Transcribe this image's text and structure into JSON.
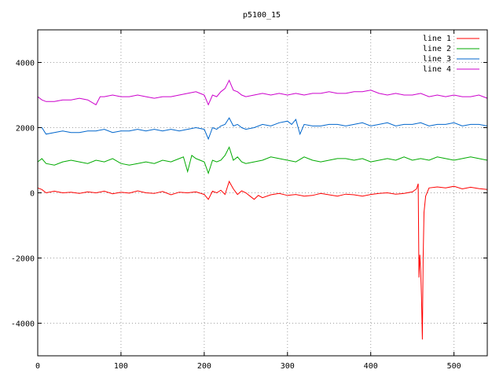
{
  "chart_data": {
    "type": "line",
    "title": "p5100_15",
    "xlabel": "",
    "ylabel": "",
    "xlim": [
      0,
      540
    ],
    "ylim": [
      -5000,
      5000
    ],
    "xticks": [
      0,
      100,
      200,
      300,
      400,
      500
    ],
    "yticks": [
      -4000,
      -2000,
      0,
      2000,
      4000
    ],
    "grid": true,
    "legend_position": "top-right",
    "series": [
      {
        "name": "line 1",
        "color": "#ff0000",
        "points": [
          [
            0,
            150
          ],
          [
            5,
            100
          ],
          [
            10,
            0
          ],
          [
            20,
            50
          ],
          [
            30,
            0
          ],
          [
            40,
            20
          ],
          [
            50,
            -20
          ],
          [
            60,
            30
          ],
          [
            70,
            0
          ],
          [
            80,
            50
          ],
          [
            90,
            -30
          ],
          [
            100,
            20
          ],
          [
            110,
            -10
          ],
          [
            120,
            60
          ],
          [
            130,
            0
          ],
          [
            140,
            -20
          ],
          [
            150,
            40
          ],
          [
            160,
            -60
          ],
          [
            170,
            20
          ],
          [
            180,
            0
          ],
          [
            190,
            30
          ],
          [
            200,
            -50
          ],
          [
            205,
            -200
          ],
          [
            210,
            50
          ],
          [
            215,
            0
          ],
          [
            220,
            80
          ],
          [
            225,
            -50
          ],
          [
            230,
            350
          ],
          [
            235,
            120
          ],
          [
            240,
            -50
          ],
          [
            245,
            60
          ],
          [
            250,
            0
          ],
          [
            255,
            -100
          ],
          [
            260,
            -200
          ],
          [
            265,
            -80
          ],
          [
            270,
            -150
          ],
          [
            280,
            -60
          ],
          [
            290,
            -20
          ],
          [
            300,
            -80
          ],
          [
            310,
            -50
          ],
          [
            320,
            -100
          ],
          [
            330,
            -80
          ],
          [
            340,
            -20
          ],
          [
            350,
            -60
          ],
          [
            360,
            -100
          ],
          [
            370,
            -40
          ],
          [
            380,
            -60
          ],
          [
            390,
            -100
          ],
          [
            400,
            -50
          ],
          [
            410,
            -20
          ],
          [
            420,
            0
          ],
          [
            430,
            -40
          ],
          [
            440,
            -20
          ],
          [
            450,
            30
          ],
          [
            455,
            120
          ],
          [
            457,
            280
          ],
          [
            458,
            -2600
          ],
          [
            459,
            -1900
          ],
          [
            460,
            -2400
          ],
          [
            461,
            -3200
          ],
          [
            462,
            -4500
          ],
          [
            463,
            -2000
          ],
          [
            464,
            -600
          ],
          [
            466,
            -100
          ],
          [
            470,
            150
          ],
          [
            480,
            180
          ],
          [
            490,
            150
          ],
          [
            500,
            200
          ],
          [
            510,
            120
          ],
          [
            520,
            170
          ],
          [
            530,
            130
          ],
          [
            540,
            100
          ]
        ]
      },
      {
        "name": "line 2",
        "color": "#00aa00",
        "points": [
          [
            0,
            950
          ],
          [
            5,
            1050
          ],
          [
            10,
            900
          ],
          [
            20,
            850
          ],
          [
            30,
            950
          ],
          [
            40,
            1000
          ],
          [
            50,
            950
          ],
          [
            60,
            900
          ],
          [
            70,
            1000
          ],
          [
            80,
            950
          ],
          [
            90,
            1050
          ],
          [
            100,
            900
          ],
          [
            110,
            850
          ],
          [
            120,
            900
          ],
          [
            130,
            950
          ],
          [
            140,
            900
          ],
          [
            150,
            1000
          ],
          [
            160,
            950
          ],
          [
            170,
            1050
          ],
          [
            175,
            1100
          ],
          [
            180,
            650
          ],
          [
            185,
            1150
          ],
          [
            190,
            1050
          ],
          [
            195,
            1000
          ],
          [
            200,
            950
          ],
          [
            205,
            600
          ],
          [
            210,
            1000
          ],
          [
            215,
            950
          ],
          [
            220,
            1000
          ],
          [
            225,
            1150
          ],
          [
            230,
            1400
          ],
          [
            235,
            1000
          ],
          [
            240,
            1100
          ],
          [
            245,
            950
          ],
          [
            250,
            900
          ],
          [
            260,
            950
          ],
          [
            270,
            1000
          ],
          [
            280,
            1100
          ],
          [
            290,
            1050
          ],
          [
            300,
            1000
          ],
          [
            310,
            950
          ],
          [
            320,
            1100
          ],
          [
            330,
            1000
          ],
          [
            340,
            950
          ],
          [
            350,
            1000
          ],
          [
            360,
            1050
          ],
          [
            370,
            1050
          ],
          [
            380,
            1000
          ],
          [
            390,
            1050
          ],
          [
            400,
            950
          ],
          [
            410,
            1000
          ],
          [
            420,
            1050
          ],
          [
            430,
            1000
          ],
          [
            440,
            1100
          ],
          [
            450,
            1000
          ],
          [
            460,
            1050
          ],
          [
            470,
            1000
          ],
          [
            480,
            1100
          ],
          [
            490,
            1050
          ],
          [
            500,
            1000
          ],
          [
            510,
            1050
          ],
          [
            520,
            1100
          ],
          [
            530,
            1050
          ],
          [
            540,
            1000
          ]
        ]
      },
      {
        "name": "line 3",
        "color": "#0066cc",
        "points": [
          [
            0,
            2000
          ],
          [
            5,
            2000
          ],
          [
            10,
            1800
          ],
          [
            20,
            1850
          ],
          [
            30,
            1900
          ],
          [
            40,
            1850
          ],
          [
            50,
            1850
          ],
          [
            60,
            1900
          ],
          [
            70,
            1900
          ],
          [
            80,
            1950
          ],
          [
            90,
            1850
          ],
          [
            100,
            1900
          ],
          [
            110,
            1900
          ],
          [
            120,
            1950
          ],
          [
            130,
            1900
          ],
          [
            140,
            1950
          ],
          [
            150,
            1900
          ],
          [
            160,
            1950
          ],
          [
            170,
            1900
          ],
          [
            180,
            1950
          ],
          [
            190,
            2000
          ],
          [
            200,
            1950
          ],
          [
            205,
            1650
          ],
          [
            210,
            2000
          ],
          [
            215,
            1950
          ],
          [
            220,
            2050
          ],
          [
            225,
            2100
          ],
          [
            230,
            2300
          ],
          [
            235,
            2050
          ],
          [
            240,
            2100
          ],
          [
            245,
            2000
          ],
          [
            250,
            1950
          ],
          [
            260,
            2000
          ],
          [
            270,
            2100
          ],
          [
            280,
            2050
          ],
          [
            290,
            2150
          ],
          [
            300,
            2200
          ],
          [
            305,
            2100
          ],
          [
            310,
            2250
          ],
          [
            315,
            1800
          ],
          [
            320,
            2100
          ],
          [
            330,
            2050
          ],
          [
            340,
            2050
          ],
          [
            350,
            2100
          ],
          [
            360,
            2100
          ],
          [
            370,
            2050
          ],
          [
            380,
            2100
          ],
          [
            390,
            2150
          ],
          [
            400,
            2050
          ],
          [
            410,
            2100
          ],
          [
            420,
            2150
          ],
          [
            430,
            2050
          ],
          [
            440,
            2100
          ],
          [
            450,
            2100
          ],
          [
            460,
            2150
          ],
          [
            470,
            2050
          ],
          [
            480,
            2100
          ],
          [
            490,
            2100
          ],
          [
            500,
            2150
          ],
          [
            510,
            2050
          ],
          [
            520,
            2100
          ],
          [
            530,
            2100
          ],
          [
            540,
            2050
          ]
        ]
      },
      {
        "name": "line 4",
        "color": "#cc00cc",
        "points": [
          [
            0,
            2950
          ],
          [
            5,
            2850
          ],
          [
            10,
            2800
          ],
          [
            20,
            2800
          ],
          [
            30,
            2850
          ],
          [
            40,
            2850
          ],
          [
            50,
            2900
          ],
          [
            60,
            2850
          ],
          [
            70,
            2700
          ],
          [
            75,
            2950
          ],
          [
            80,
            2950
          ],
          [
            90,
            3000
          ],
          [
            100,
            2950
          ],
          [
            110,
            2950
          ],
          [
            120,
            3000
          ],
          [
            130,
            2950
          ],
          [
            140,
            2900
          ],
          [
            150,
            2950
          ],
          [
            160,
            2950
          ],
          [
            170,
            3000
          ],
          [
            180,
            3050
          ],
          [
            190,
            3100
          ],
          [
            195,
            3050
          ],
          [
            200,
            3000
          ],
          [
            205,
            2700
          ],
          [
            210,
            3000
          ],
          [
            215,
            2950
          ],
          [
            220,
            3100
          ],
          [
            225,
            3200
          ],
          [
            230,
            3450
          ],
          [
            235,
            3150
          ],
          [
            240,
            3100
          ],
          [
            245,
            3000
          ],
          [
            250,
            2950
          ],
          [
            260,
            3000
          ],
          [
            270,
            3050
          ],
          [
            280,
            3000
          ],
          [
            290,
            3050
          ],
          [
            300,
            3000
          ],
          [
            310,
            3050
          ],
          [
            320,
            3000
          ],
          [
            330,
            3050
          ],
          [
            340,
            3050
          ],
          [
            350,
            3100
          ],
          [
            360,
            3050
          ],
          [
            370,
            3050
          ],
          [
            380,
            3100
          ],
          [
            390,
            3100
          ],
          [
            400,
            3150
          ],
          [
            410,
            3050
          ],
          [
            420,
            3000
          ],
          [
            430,
            3050
          ],
          [
            440,
            3000
          ],
          [
            450,
            3000
          ],
          [
            460,
            3050
          ],
          [
            470,
            2950
          ],
          [
            480,
            3000
          ],
          [
            490,
            2950
          ],
          [
            500,
            3000
          ],
          [
            510,
            2950
          ],
          [
            520,
            2950
          ],
          [
            530,
            3000
          ],
          [
            540,
            2900
          ]
        ]
      }
    ]
  }
}
